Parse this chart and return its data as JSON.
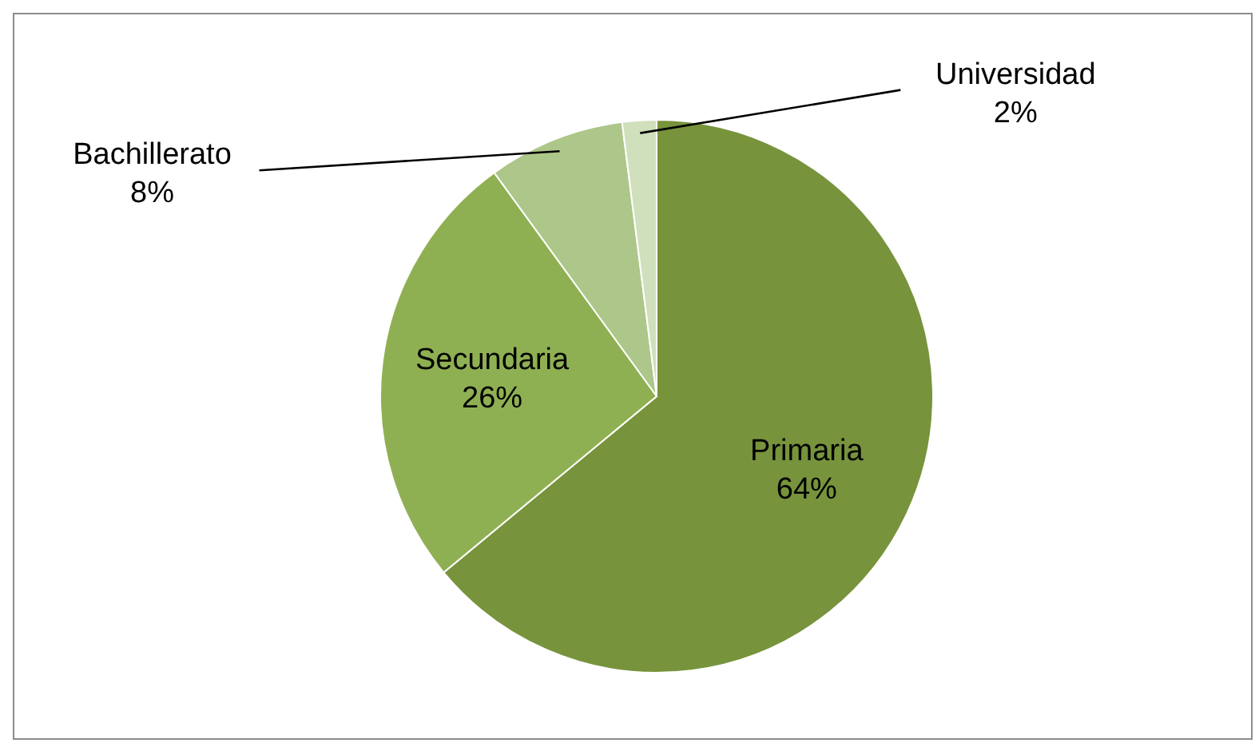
{
  "chart_data": {
    "type": "pie",
    "categories": [
      "Primaria",
      "Secundaria",
      "Bachillerato",
      "Universidad"
    ],
    "values": [
      64,
      26,
      8,
      2
    ],
    "value_labels": [
      "64%",
      "26%",
      "8%",
      "2%"
    ],
    "colors": [
      "#77933c",
      "#8fb052",
      "#adc689",
      "#d0dfbc"
    ],
    "legend": false
  }
}
